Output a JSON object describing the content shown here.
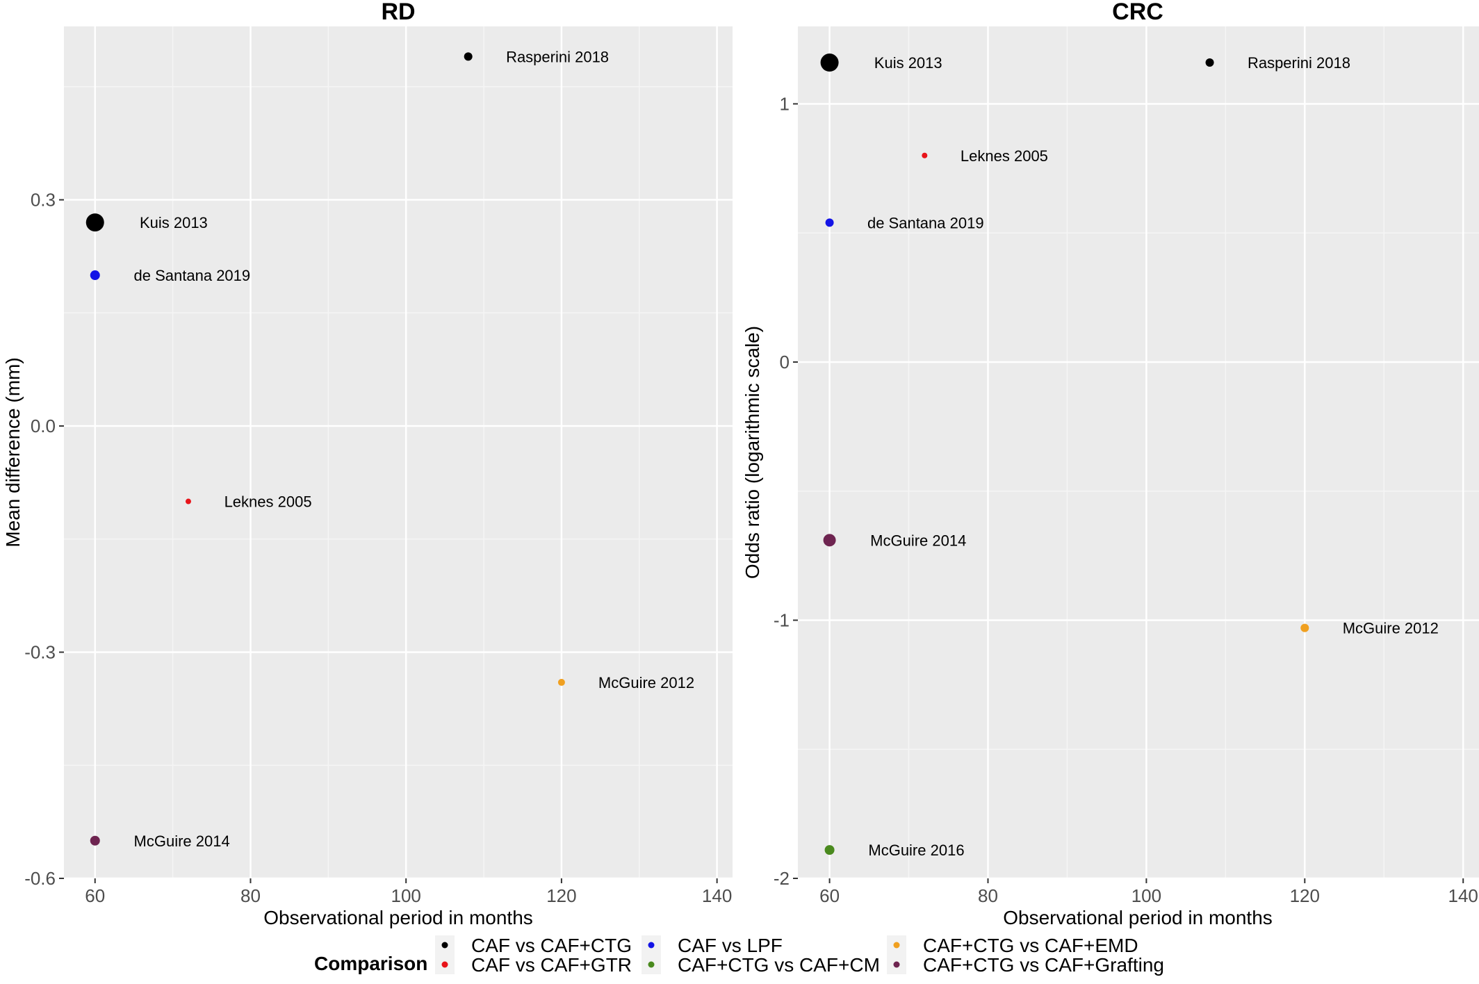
{
  "chart_data": [
    {
      "type": "scatter",
      "title": "RD",
      "xlabel": "Observational period in months",
      "ylabel": "Mean difference (mm)",
      "xlim": [
        56,
        142
      ],
      "ylim": [
        -0.6,
        0.53
      ],
      "x_ticks": [
        60,
        80,
        100,
        120,
        140
      ],
      "y_ticks": [
        -0.6,
        -0.3,
        0.0,
        0.3
      ],
      "y_tick_labels": [
        "-0.6",
        "-0.3",
        "0.0",
        "0.3"
      ],
      "grid": true,
      "points": [
        {
          "label": "Rasperini 2018",
          "x": 108,
          "y": 0.49,
          "group": "CAF vs CAF+CTG",
          "size": 6
        },
        {
          "label": "Kuis 2013",
          "x": 60,
          "y": 0.27,
          "group": "CAF vs CAF+CTG",
          "size": 13
        },
        {
          "label": "de Santana 2019",
          "x": 60,
          "y": 0.2,
          "group": "CAF vs LPF",
          "size": 7
        },
        {
          "label": "Leknes 2005",
          "x": 72,
          "y": -0.1,
          "group": "CAF vs CAF+GTR",
          "size": 4
        },
        {
          "label": "McGuire 2012",
          "x": 120,
          "y": -0.34,
          "group": "CAF+CTG vs CAF+EMD",
          "size": 5
        },
        {
          "label": "McGuire 2014",
          "x": 60,
          "y": -0.55,
          "group": "CAF+CTG vs CAF+Grafting",
          "size": 7
        }
      ]
    },
    {
      "type": "scatter",
      "title": "CRC",
      "xlabel": "Observational period in months",
      "ylabel": "Odds ratio (logarithmic scale)",
      "xlim": [
        56,
        142
      ],
      "ylim": [
        -2.0,
        1.3
      ],
      "x_ticks": [
        60,
        80,
        100,
        120,
        140
      ],
      "y_ticks": [
        -2,
        -1,
        0,
        1
      ],
      "y_tick_labels": [
        "-2",
        "-1",
        "0",
        "1"
      ],
      "grid": true,
      "points": [
        {
          "label": "Kuis 2013",
          "x": 60,
          "y": 1.16,
          "group": "CAF vs CAF+CTG",
          "size": 13
        },
        {
          "label": "Rasperini 2018",
          "x": 108,
          "y": 1.16,
          "group": "CAF vs CAF+CTG",
          "size": 6
        },
        {
          "label": "Leknes 2005",
          "x": 72,
          "y": 0.8,
          "group": "CAF vs CAF+GTR",
          "size": 4
        },
        {
          "label": "de Santana 2019",
          "x": 60,
          "y": 0.54,
          "group": "CAF vs LPF",
          "size": 6
        },
        {
          "label": "McGuire 2014",
          "x": 60,
          "y": -0.69,
          "group": "CAF+CTG vs CAF+Grafting",
          "size": 9
        },
        {
          "label": "McGuire 2012",
          "x": 120,
          "y": -1.03,
          "group": "CAF+CTG vs CAF+EMD",
          "size": 6
        },
        {
          "label": "McGuire 2016",
          "x": 60,
          "y": -1.89,
          "group": "CAF+CTG vs CAF+CM",
          "size": 7
        }
      ]
    }
  ],
  "legend": {
    "title": "Comparison",
    "placement": "bottom",
    "items": [
      {
        "label": "CAF vs CAF+CTG",
        "color": "#000000"
      },
      {
        "label": "CAF vs CAF+GTR",
        "color": "#e8141a"
      },
      {
        "label": "CAF vs LPF",
        "color": "#1414e6"
      },
      {
        "label": "CAF+CTG vs CAF+CM",
        "color": "#4a8a1e"
      },
      {
        "label": "CAF+CTG vs CAF+EMD",
        "color": "#f0a020"
      },
      {
        "label": "CAF+CTG vs CAF+Grafting",
        "color": "#6e2450"
      }
    ]
  },
  "colors": {
    "panel_background": "#ebebeb",
    "grid_major": "#ffffff",
    "grid_minor": "#f5f5f5"
  }
}
